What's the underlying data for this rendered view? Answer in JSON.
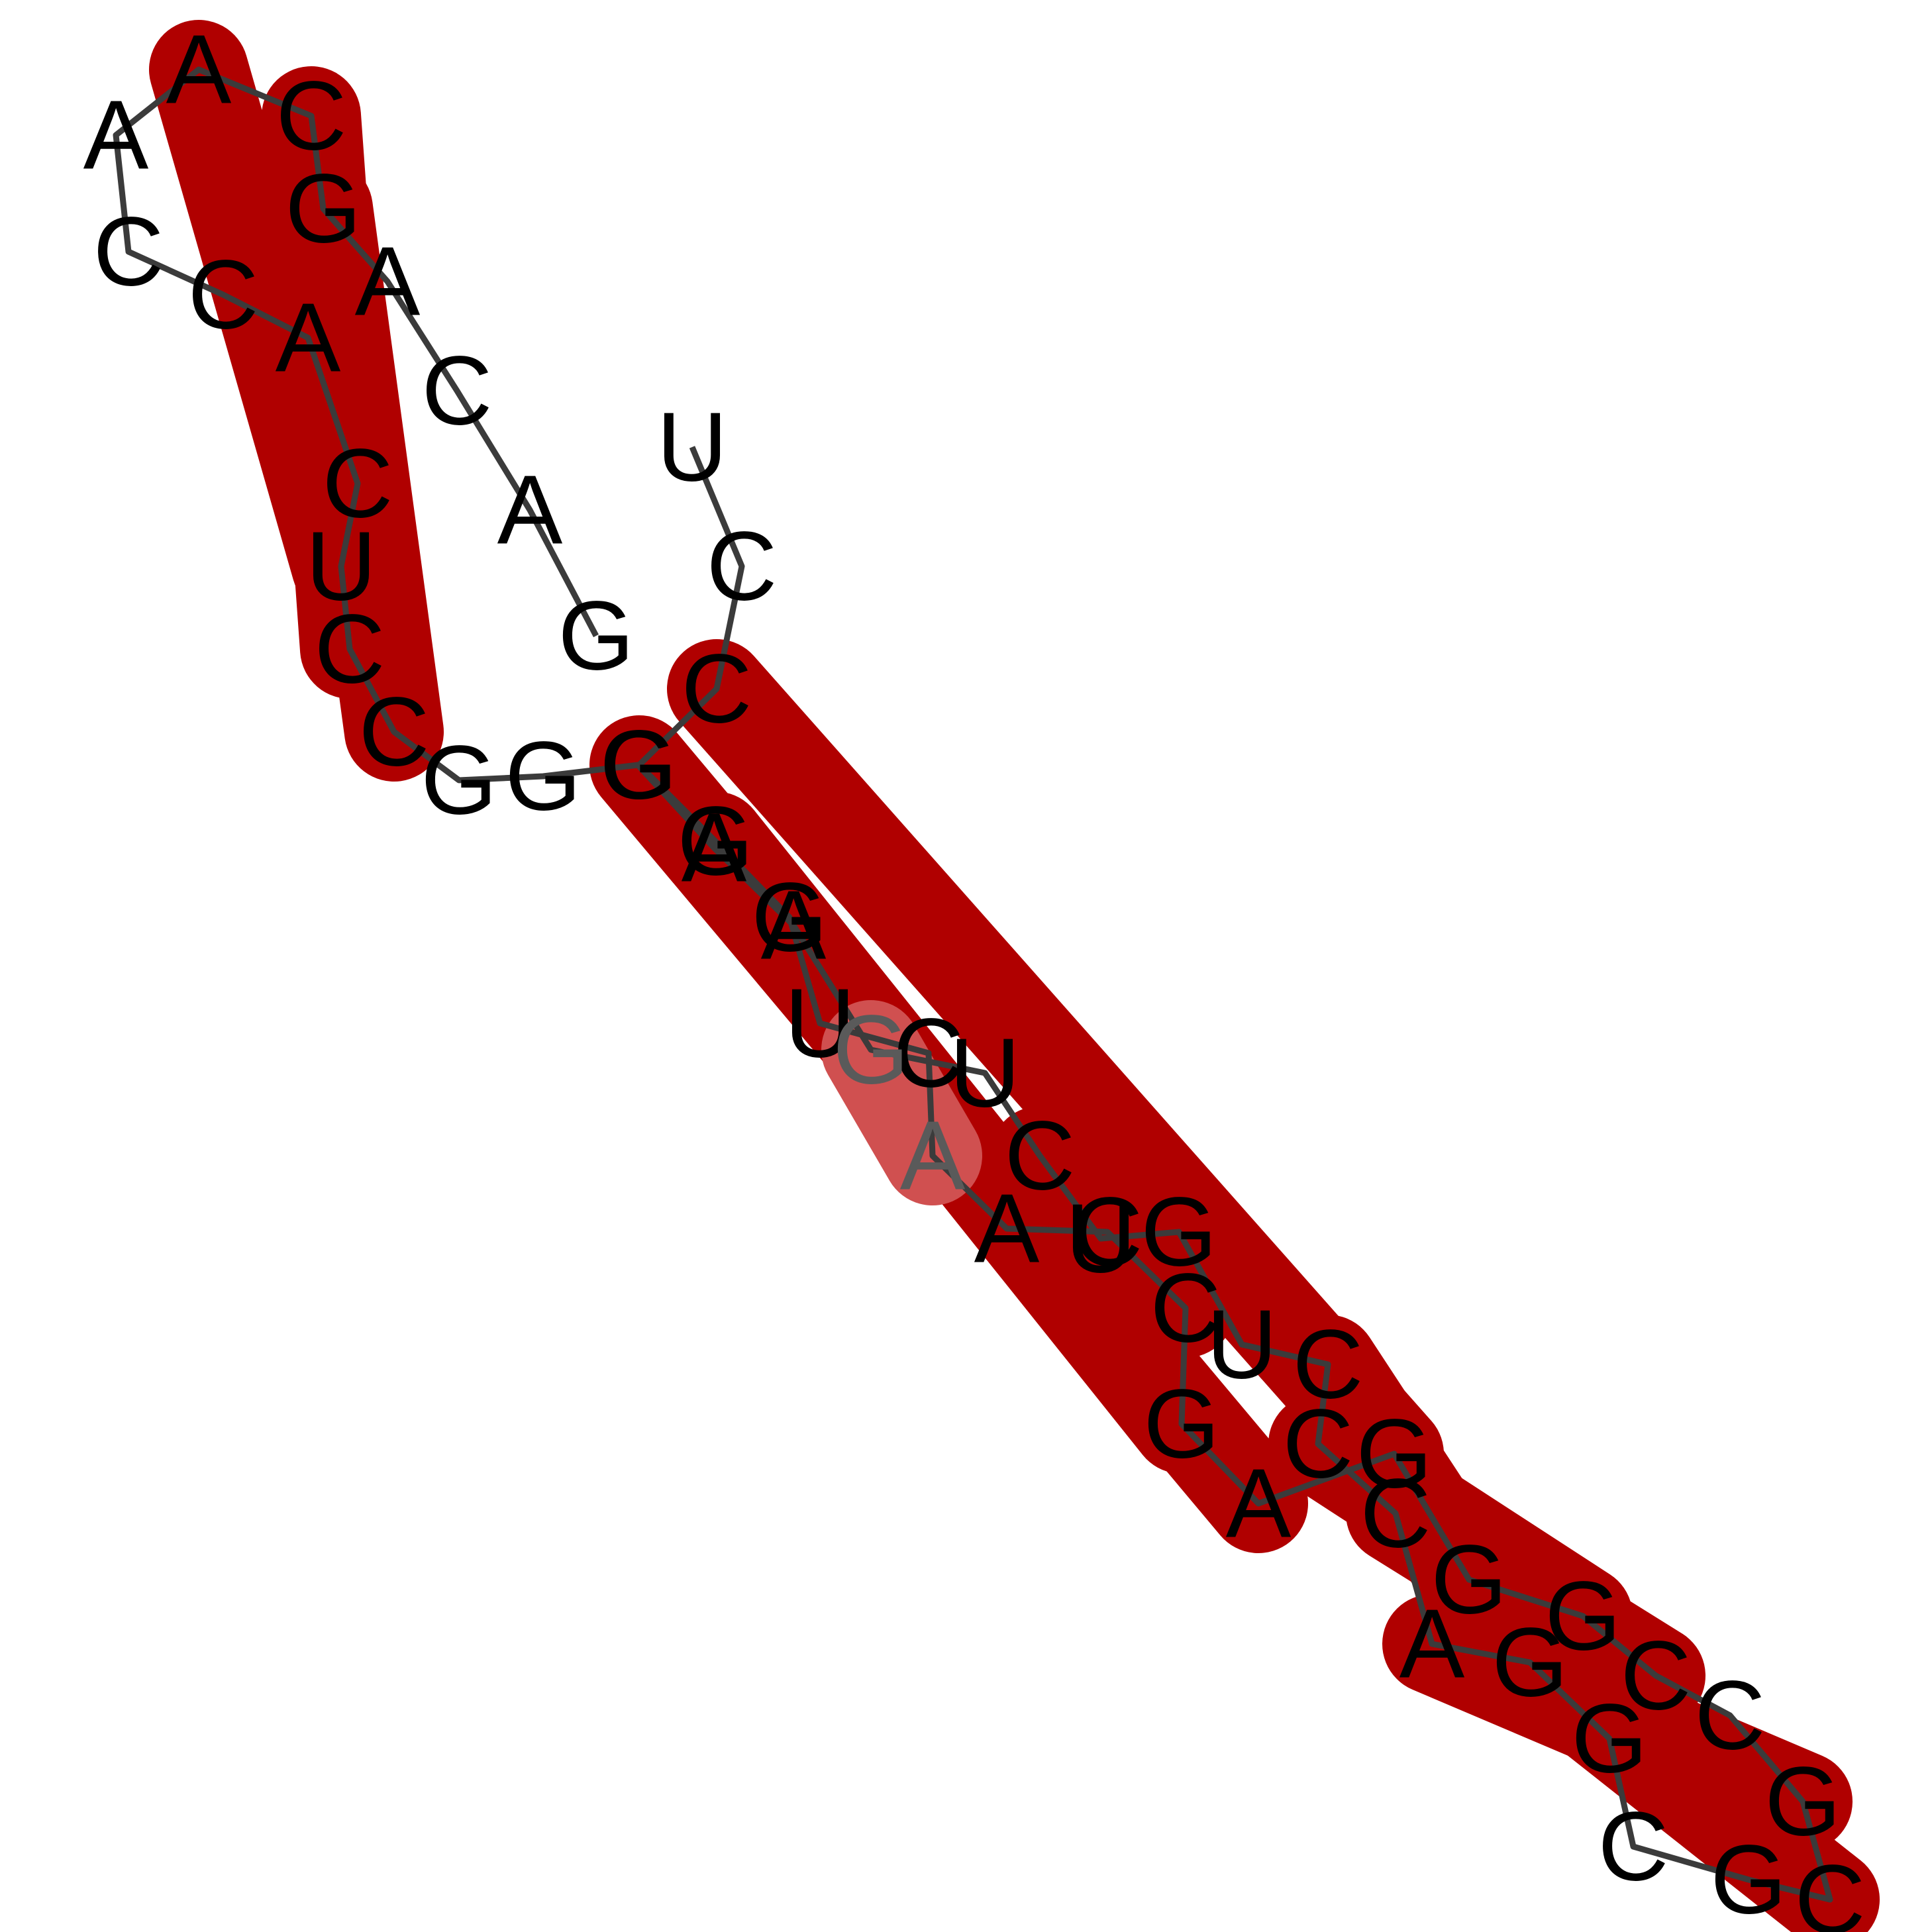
{
  "rna": {
    "sequence": [
      "U",
      "C",
      "C",
      "G",
      "G",
      "G",
      "U",
      "C",
      "A",
      "A",
      "C",
      "C",
      "G",
      "A",
      "G",
      "G",
      "G",
      "C",
      "C",
      "G",
      "C",
      "G",
      "C",
      "G",
      "G",
      "A",
      "C",
      "C",
      "C",
      "U",
      "G",
      "U",
      "C",
      "U",
      "G",
      "A",
      "A",
      "G",
      "G",
      "G",
      "C",
      "C",
      "U",
      "C",
      "A",
      "C",
      "C",
      "A",
      "A",
      "C",
      "G",
      "A",
      "C",
      "A",
      "G"
    ],
    "pairs": [
      [
        2,
        14,
        "strong"
      ],
      [
        3,
        13,
        "strong"
      ],
      [
        4,
        12,
        "strong"
      ],
      [
        8,
        34,
        "weak"
      ],
      [
        10,
        32,
        "strong"
      ],
      [
        11,
        31,
        "strong"
      ],
      [
        15,
        28,
        "strong"
      ],
      [
        16,
        27,
        "strong"
      ],
      [
        17,
        26,
        "strong"
      ],
      [
        19,
        25,
        "strong"
      ],
      [
        20,
        24,
        "strong"
      ],
      [
        40,
        50,
        "strong"
      ],
      [
        41,
        49,
        "strong"
      ],
      [
        42,
        48,
        "strong"
      ]
    ]
  },
  "colors": {
    "pair_strong": "#b00000",
    "pair_weak": "#d05050",
    "backbone": "#3b3b3b",
    "label": "#000000"
  }
}
